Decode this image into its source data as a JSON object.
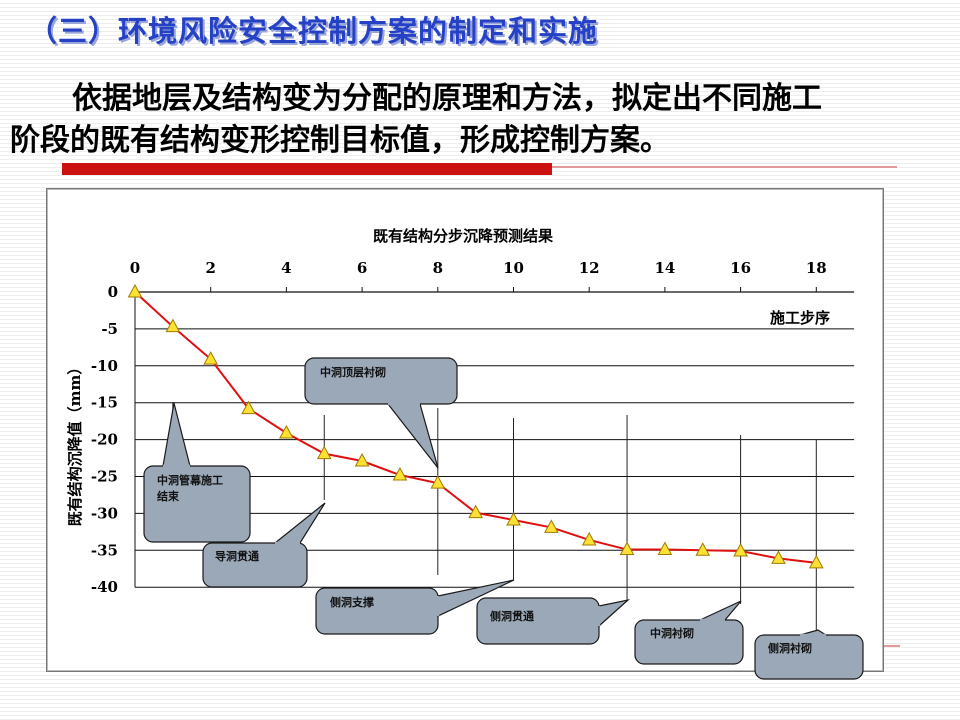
{
  "slide": {
    "title": "（三）环境风险安全控制方案的制定和实施",
    "paragraph_line1": "依据地层及结构变为分配的原理和方法，拟定出不同施工",
    "paragraph_line2": "阶段的既有结构变形控制目标值，形成控制方案。",
    "accent_color": "#2541c6",
    "bar_color": "#cc1111"
  },
  "chart_data": {
    "type": "line",
    "title": "既有结构分步沉降预测结果",
    "xlabel": "施工步序",
    "ylabel": "既有结构沉降值（mm）",
    "xlim": [
      0,
      19
    ],
    "ylim": [
      -40,
      0
    ],
    "x_ticks": [
      "0",
      "2",
      "4",
      "6",
      "8",
      "10",
      "12",
      "14",
      "16",
      "18"
    ],
    "y_ticks": [
      "0",
      "-5",
      "-10",
      "-15",
      "-20",
      "-25",
      "-30",
      "-35",
      "-40"
    ],
    "x_axis_position": "top",
    "grid": "horizontal",
    "line_color": "#e01010",
    "marker_color": "#ffe133",
    "x": [
      0,
      1,
      2,
      3,
      4,
      5,
      6,
      7,
      8,
      9,
      10,
      11,
      12,
      13,
      14,
      15,
      16,
      17,
      18
    ],
    "values": [
      0,
      -4.7,
      -9.1,
      -15.8,
      -19.1,
      -21.9,
      -22.9,
      -24.8,
      -25.9,
      -29.9,
      -30.9,
      -31.9,
      -33.6,
      -34.9,
      -34.9,
      -35.0,
      -35.1,
      -36.1,
      -36.7
    ],
    "annotations": [
      {
        "text": "中洞管幕施工结束",
        "x": 1
      },
      {
        "text": "导洞贯通",
        "x": 5
      },
      {
        "text": "中洞顶层衬砌",
        "x": 8
      },
      {
        "text": "侧洞支撑",
        "x": 10
      },
      {
        "text": "侧洞贯通",
        "x": 13
      },
      {
        "text": "中洞衬砌",
        "x": 16
      },
      {
        "text": "侧洞衬砌",
        "x": 18
      }
    ]
  }
}
